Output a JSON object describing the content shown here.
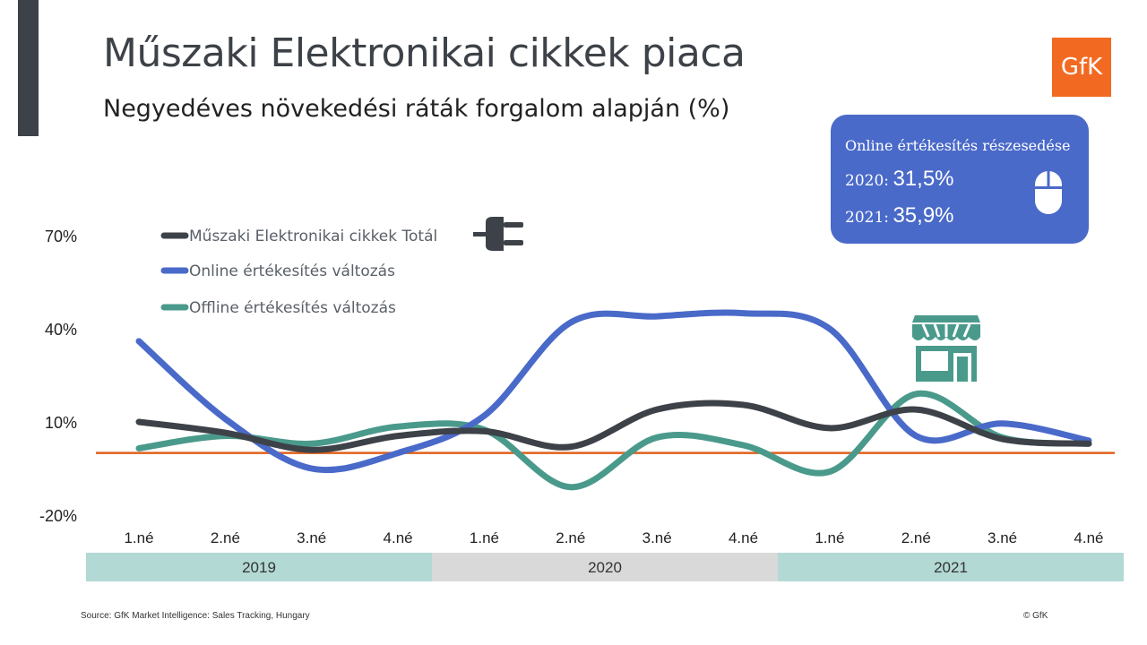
{
  "header": {
    "title": "Műszaki Elektronikai cikkek piaca",
    "subtitle": "Negyedéves növekedési ráták forgalom alapján (%)",
    "logo_text": "GfK"
  },
  "share_box": {
    "title": "Online értékesítés részesedése",
    "rows": [
      {
        "label": "2020:",
        "value": "31,5%"
      },
      {
        "label": "2021:",
        "value": "35,9%"
      }
    ],
    "icon": "computer-mouse-icon"
  },
  "footer": {
    "source": "Source: GfK Market Intelligence: Sales Tracking, Hungary",
    "copyright": "© GfK"
  },
  "colors": {
    "total": "#3d4248",
    "online": "#4a6ac9",
    "offline": "#4a9a8c",
    "zero_line": "#e0611c",
    "year_teal": "#b3d9d4",
    "year_grey": "#d9d9d9"
  },
  "chart_data": {
    "type": "line",
    "title": "Műszaki Elektronikai cikkek piaca",
    "subtitle": "Negyedéves növekedési ráták forgalom alapján (%)",
    "categories": [
      "1.né",
      "2.né",
      "3.né",
      "4.né",
      "1.né",
      "2.né",
      "3.né",
      "4.né",
      "1.né",
      "2.né",
      "3.né",
      "4.né"
    ],
    "year_groups": [
      {
        "label": "2019",
        "span": 4
      },
      {
        "label": "2020",
        "span": 4
      },
      {
        "label": "2021",
        "span": 4
      }
    ],
    "yticks": [
      "70%",
      "40%",
      "10%",
      "-20%"
    ],
    "ytick_values": [
      70,
      40,
      10,
      -20
    ],
    "ylim": [
      -20,
      70
    ],
    "reference_line": 0,
    "grid": false,
    "legend_position": "top-left",
    "series": [
      {
        "name": "Műszaki Elektronikai cikkek Totál",
        "values": [
          10,
          6.5,
          1,
          5.5,
          7,
          2,
          14,
          15.5,
          8,
          14,
          4.5,
          3
        ],
        "icon": "power-plug-icon"
      },
      {
        "name": "Online értékesítés változás",
        "values": [
          36,
          11,
          -5,
          0,
          12,
          42,
          44,
          45,
          40,
          5.5,
          9.5,
          4
        ],
        "icon": ""
      },
      {
        "name": "Offline értékesítés változás",
        "values": [
          1.5,
          5.5,
          3,
          8.5,
          7.5,
          -11,
          5,
          2.5,
          -6,
          19,
          5,
          3
        ],
        "icon": "store-icon"
      }
    ]
  }
}
